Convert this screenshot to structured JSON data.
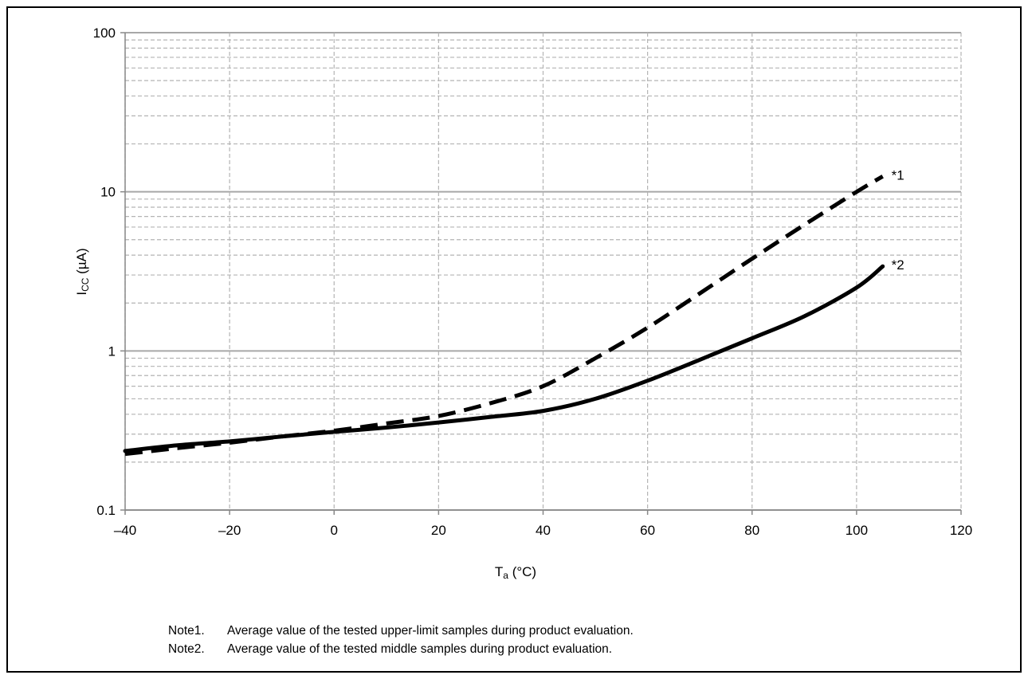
{
  "chart_data": {
    "type": "line",
    "x_axis": {
      "label_main": "T",
      "label_sub": "a",
      "label_unit": " (°C)",
      "range": [
        -40,
        120
      ],
      "ticks": [
        -40,
        -20,
        0,
        20,
        40,
        60,
        80,
        100,
        120
      ],
      "tick_labels": [
        "–40",
        "–20",
        "0",
        "20",
        "40",
        "60",
        "80",
        "100",
        "120"
      ]
    },
    "y_axis": {
      "scale": "log",
      "label_main": "I",
      "label_sub": "CC",
      "label_unit": " (µA)",
      "range": [
        0.1,
        100
      ],
      "ticks": [
        0.1,
        1,
        10,
        100
      ],
      "tick_labels": [
        "0.1",
        "1",
        "10",
        "100"
      ]
    },
    "grid": "dashed gray, major and minor",
    "series": [
      {
        "name": "*1",
        "style": "dashed",
        "color": "#000000",
        "x": [
          -40,
          -30,
          -20,
          -10,
          0,
          10,
          20,
          30,
          40,
          50,
          60,
          70,
          80,
          90,
          100,
          105
        ],
        "y": [
          0.225,
          0.245,
          0.265,
          0.29,
          0.315,
          0.35,
          0.39,
          0.47,
          0.6,
          0.9,
          1.4,
          2.3,
          3.8,
          6.2,
          10.0,
          12.5
        ]
      },
      {
        "name": "*2",
        "style": "solid",
        "color": "#000000",
        "x": [
          -40,
          -30,
          -20,
          -10,
          0,
          10,
          20,
          30,
          40,
          50,
          60,
          70,
          80,
          90,
          100,
          105
        ],
        "y": [
          0.235,
          0.255,
          0.27,
          0.29,
          0.31,
          0.33,
          0.355,
          0.385,
          0.42,
          0.5,
          0.65,
          0.88,
          1.2,
          1.65,
          2.5,
          3.4
        ]
      }
    ]
  },
  "notes": [
    {
      "label": "Note1.",
      "text": "Average value of the tested upper-limit samples during product evaluation."
    },
    {
      "label": "Note2.",
      "text": "Average value of the tested middle samples during product evaluation."
    }
  ]
}
